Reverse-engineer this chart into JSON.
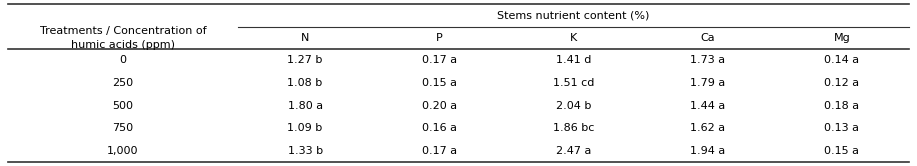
{
  "header_top": "Stems nutrient content (%)",
  "col0_header_line1": "Treatments / Concentration of",
  "col0_header_line2": "humic acids (ppm)",
  "subheaders": [
    "N",
    "P",
    "K",
    "Ca",
    "Mg"
  ],
  "treatments": [
    "0",
    "250",
    "500",
    "750",
    "1,000"
  ],
  "data": [
    [
      "1.27 b",
      "0.17 a",
      "1.41 d",
      "1.73 a",
      "0.14 a"
    ],
    [
      "1.08 b",
      "0.15 a",
      "1.51 cd",
      "1.79 a",
      "0.12 a"
    ],
    [
      "1.80 a",
      "0.20 a",
      "2.04 b",
      "1.44 a",
      "0.18 a"
    ],
    [
      "1.09 b",
      "0.16 a",
      "1.86 bc",
      "1.62 a",
      "0.13 a"
    ],
    [
      "1.33 b",
      "0.17 a",
      "2.47 a",
      "1.94 a",
      "0.15 a"
    ]
  ],
  "background_color": "#ffffff",
  "line_color": "#333333",
  "font_size": 8.0,
  "font_family": "DejaVu Sans"
}
